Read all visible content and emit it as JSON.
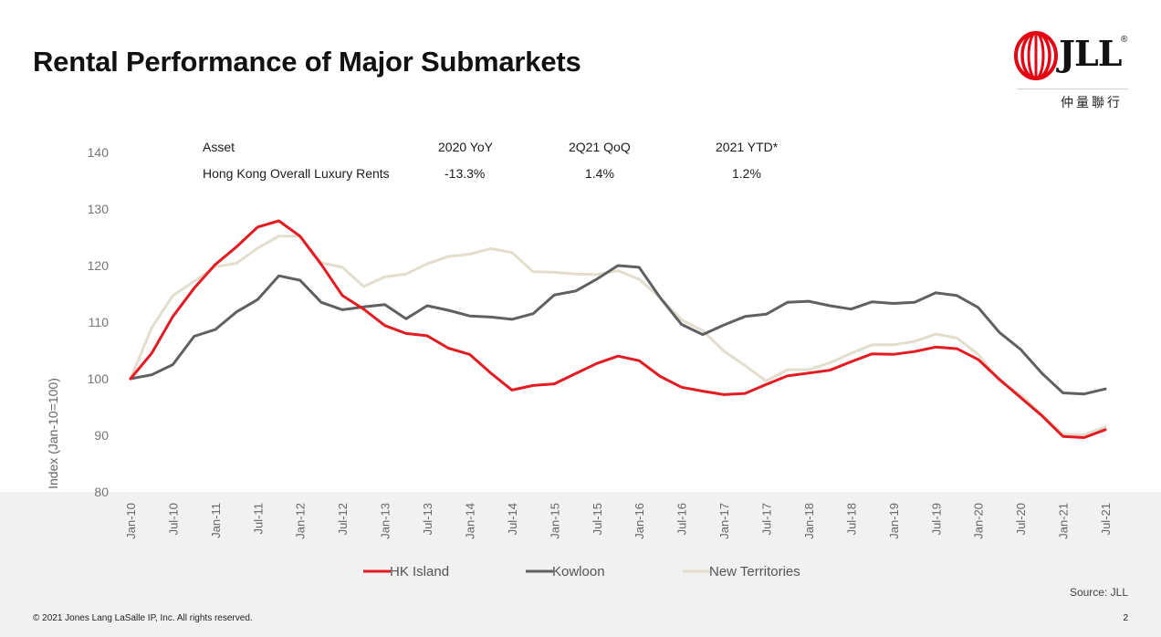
{
  "slide": {
    "title": "Rental Performance of Major Submarkets",
    "source": "Source: JLL",
    "footer": "© 2021 Jones Lang LaSalle IP, Inc. All rights reserved.",
    "page_number": "2"
  },
  "logo": {
    "text": "JLL",
    "reg": "®",
    "chinese": "仲量聯行",
    "colors": {
      "red": "#e30613",
      "ink": "#111111"
    }
  },
  "table": {
    "headers": [
      "Asset",
      "2020 YoY",
      "2Q21 QoQ",
      "2021 YTD*"
    ],
    "row": [
      "Hong Kong Overall Luxury Rents",
      "-13.3%",
      "1.4%",
      "1.2%"
    ]
  },
  "chart_data": {
    "type": "line",
    "ylabel": "Index (Jan-10=100)",
    "ylim": [
      80,
      140
    ],
    "yticks": [
      80,
      90,
      100,
      110,
      120,
      130,
      140
    ],
    "xticks": [
      "Jan-10",
      "Jul-10",
      "Jan-11",
      "Jul-11",
      "Jan-12",
      "Jul-12",
      "Jan-13",
      "Jul-13",
      "Jan-14",
      "Jul-14",
      "Jan-15",
      "Jul-15",
      "Jan-16",
      "Jul-16",
      "Jan-17",
      "Jul-17",
      "Jan-18",
      "Jul-18",
      "Jan-19",
      "Jul-19",
      "Jan-20",
      "Jul-20",
      "Jan-21",
      "Jul-21"
    ],
    "x_start": "Jan-10",
    "x_step": "quarter",
    "grid": false,
    "legend_position": "bottom",
    "series": [
      {
        "name": "HK Island",
        "color": "#e31b23",
        "values": [
          100,
          104.5,
          111,
          116,
          120.2,
          123.3,
          126.8,
          127.9,
          125.2,
          120.2,
          114.7,
          112.3,
          109.4,
          108,
          107.6,
          105.4,
          104.3,
          101,
          98,
          98.8,
          99.1,
          100.9,
          102.7,
          104,
          103.2,
          100.4,
          98.5,
          97.8,
          97.2,
          97.4,
          99,
          100.5,
          101,
          101.5,
          103,
          104.4,
          104.3,
          104.8,
          105.6,
          105.3,
          103.4,
          99.9,
          96.7,
          93.5,
          89.8,
          89.6,
          91
        ]
      },
      {
        "name": "Kowloon",
        "color": "#5f6062",
        "values": [
          100,
          100.7,
          102.5,
          107.5,
          108.7,
          111.8,
          114,
          118.2,
          117.4,
          113.5,
          112.2,
          112.7,
          113.1,
          110.6,
          112.9,
          112.1,
          111.1,
          110.9,
          110.5,
          111.5,
          114.8,
          115.5,
          117.6,
          120,
          119.7,
          114.3,
          109.6,
          107.8,
          109.5,
          111,
          111.4,
          113.5,
          113.7,
          112.9,
          112.3,
          113.6,
          113.3,
          113.5,
          115.2,
          114.7,
          112.6,
          108.2,
          105.2,
          101,
          97.5,
          97.3,
          98.2
        ]
      },
      {
        "name": "New Territories",
        "color": "#e2ddcc",
        "values": [
          100,
          109,
          114.7,
          117.2,
          119.8,
          120.4,
          123.1,
          125.2,
          125.2,
          120.5,
          119.7,
          116.3,
          118,
          118.5,
          120.3,
          121.6,
          122,
          123,
          122.3,
          118.9,
          118.8,
          118.5,
          118.4,
          119.1,
          117.6,
          114.3,
          110.4,
          108.5,
          104.9,
          102.3,
          99.6,
          101.6,
          101.6,
          102.8,
          104.5,
          106,
          106,
          106.6,
          107.9,
          107.2,
          104.3,
          99.6,
          97.2,
          93.7,
          90.2,
          90.1,
          91.5
        ]
      }
    ]
  }
}
